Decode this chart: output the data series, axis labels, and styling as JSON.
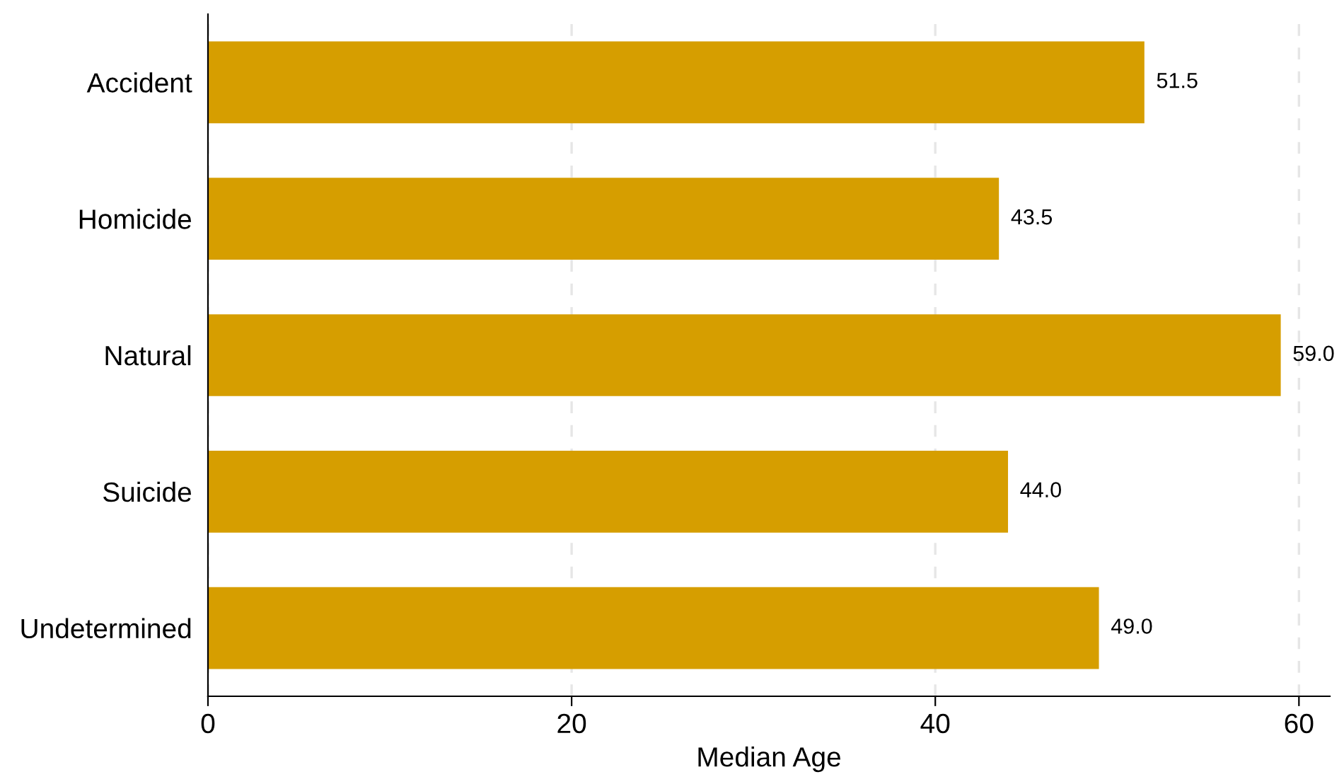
{
  "chart_data": {
    "type": "bar",
    "orientation": "horizontal",
    "xlabel": "Median Age",
    "categories": [
      "Accident",
      "Homicide",
      "Natural",
      "Suicide",
      "Undetermined"
    ],
    "values": [
      51.5,
      43.5,
      59.0,
      44.0,
      49.0
    ],
    "value_labels": [
      "51.5",
      "43.5",
      "59.0",
      "44.0",
      "49.0"
    ],
    "color": "#d69e00",
    "xlim": [
      0,
      61.7
    ],
    "xticks": [
      0,
      20,
      40,
      60
    ],
    "grid": "x"
  }
}
